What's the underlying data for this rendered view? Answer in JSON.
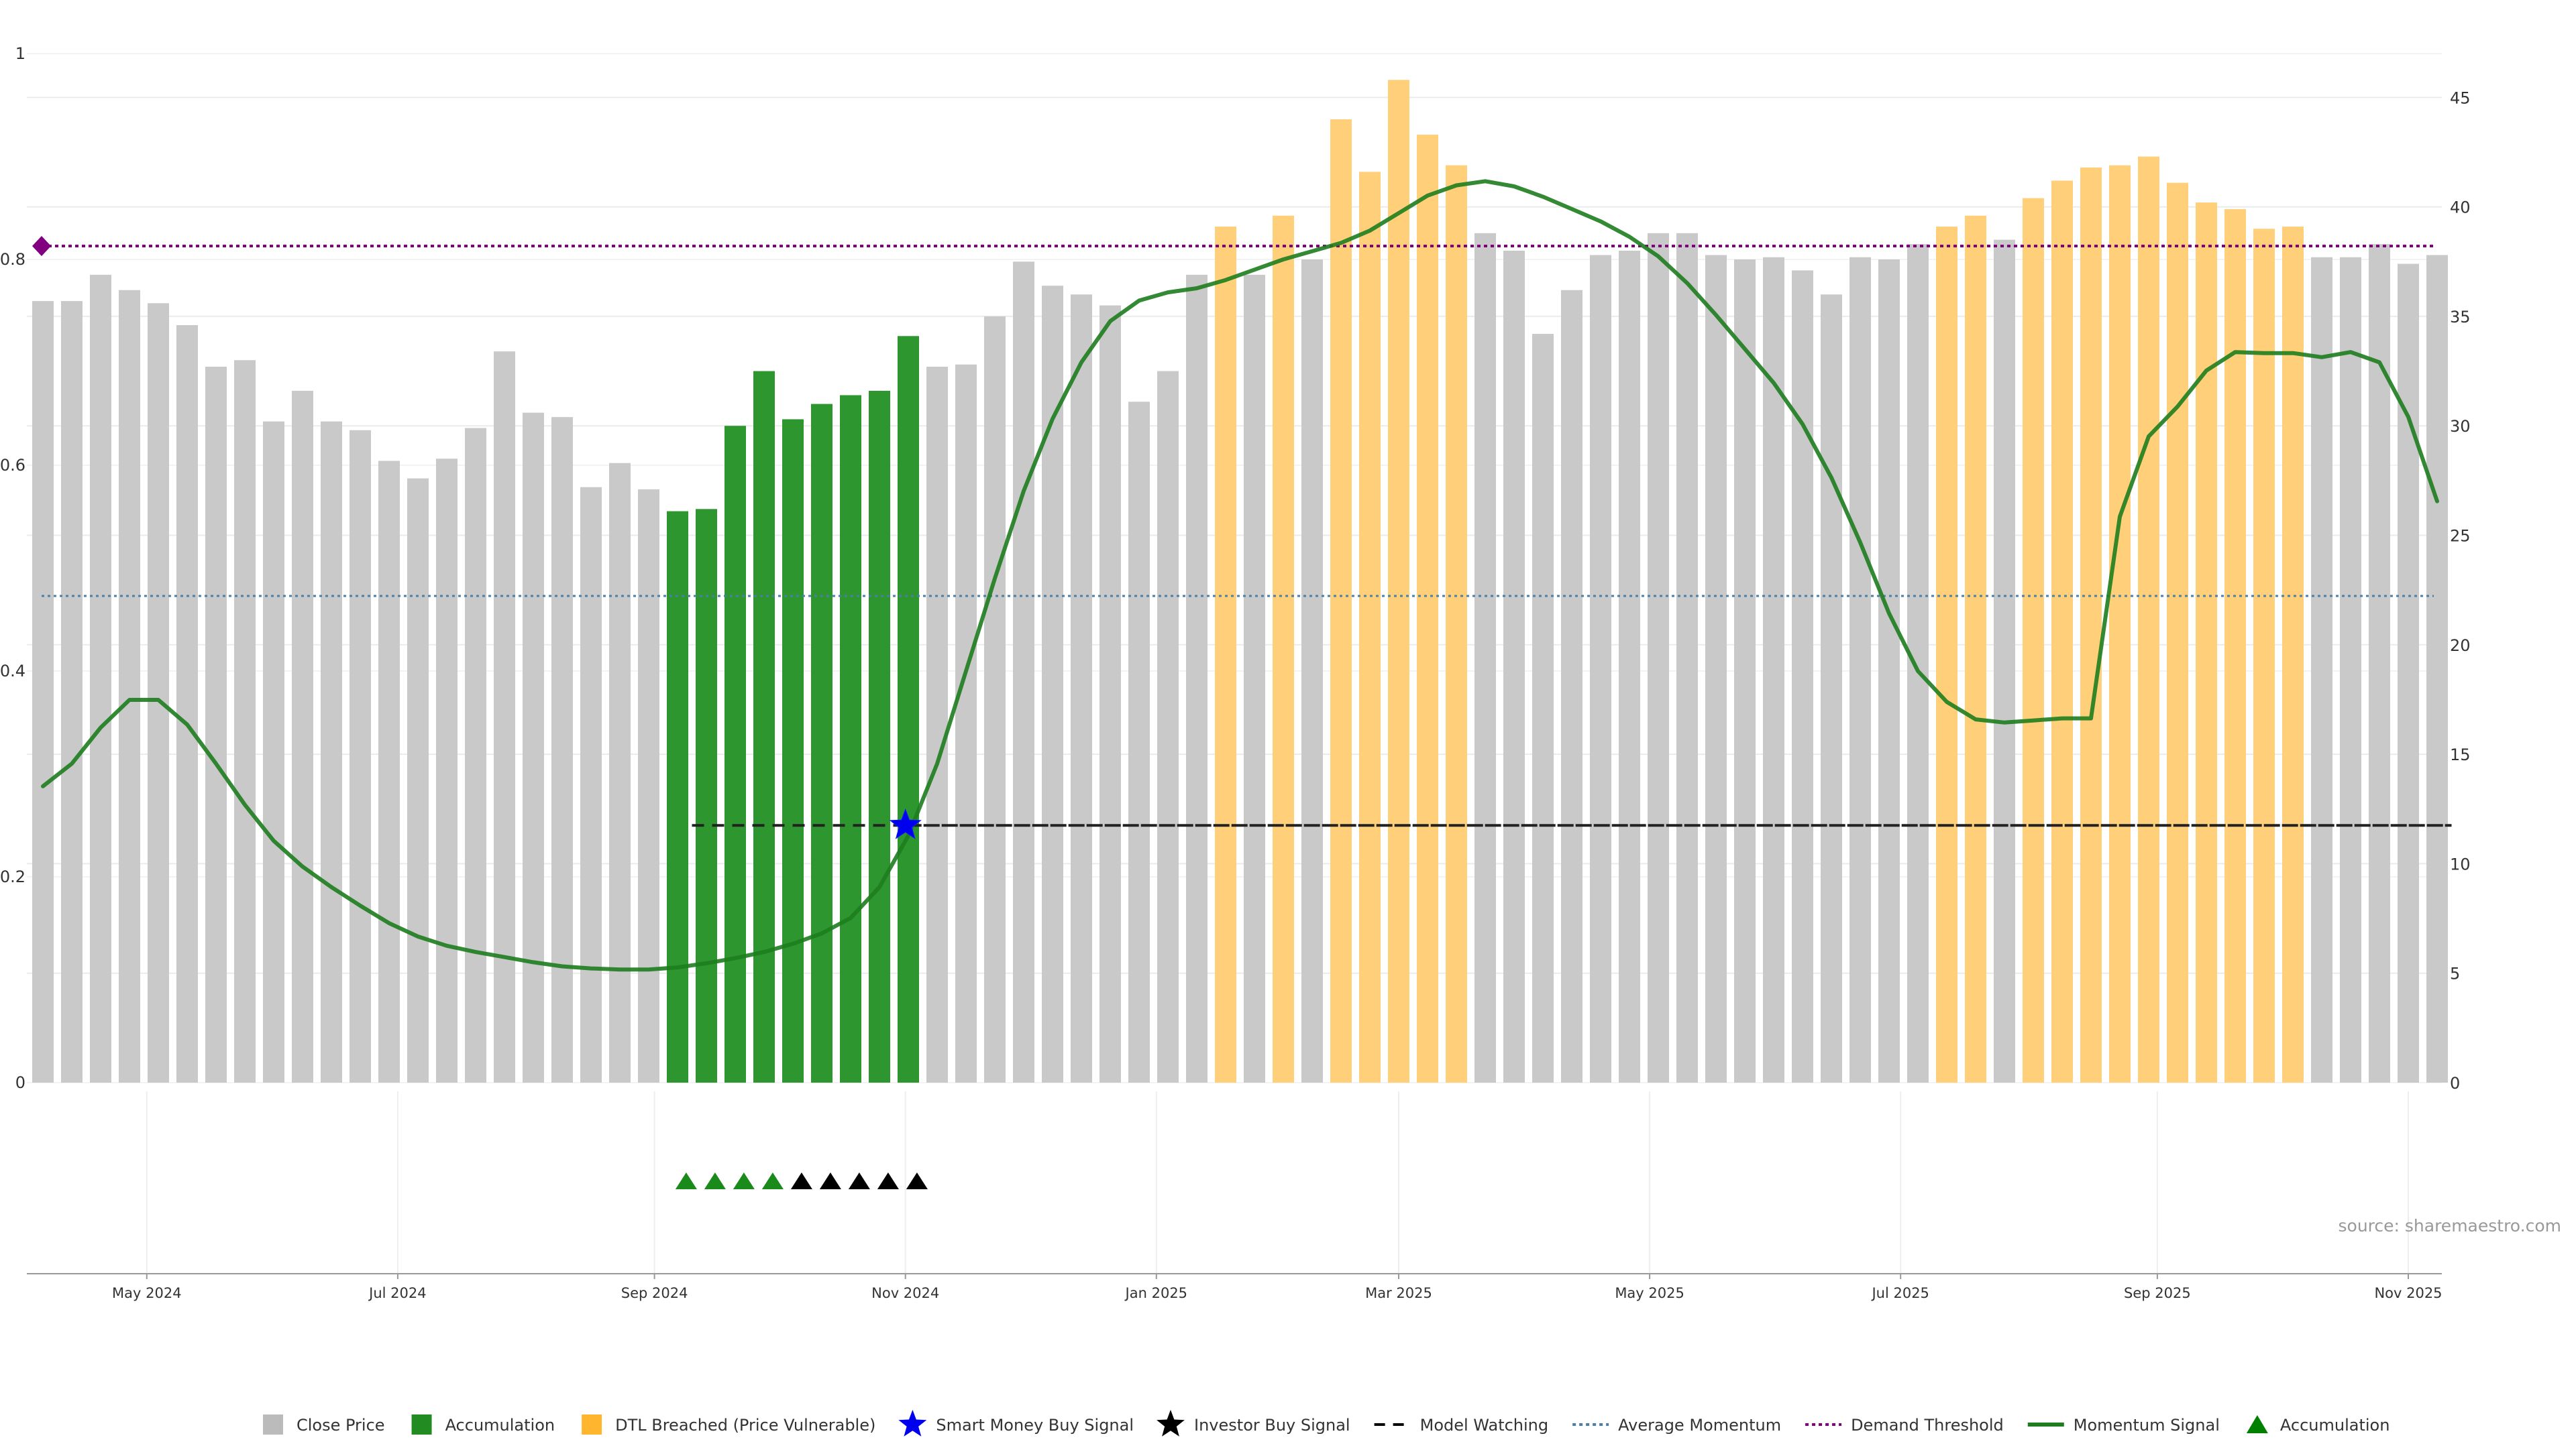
{
  "chart_data": {
    "type": "bar+line",
    "title": "",
    "source": "source: sharemaestro.com",
    "left_axis": {
      "ylim": [
        0,
        1
      ],
      "ticks": [
        0,
        0.2,
        0.4,
        0.6,
        0.8,
        1
      ],
      "tick_labels": [
        "0",
        "0.2",
        "0.4",
        "0.6",
        "0.8",
        "1"
      ]
    },
    "right_axis": {
      "ylim": [
        0,
        47
      ],
      "ticks": [
        0,
        5,
        10,
        15,
        20,
        25,
        30,
        35,
        40,
        45
      ],
      "tick_labels": [
        "0",
        "5",
        "10",
        "15",
        "20",
        "25",
        "30",
        "35",
        "40",
        "45"
      ]
    },
    "x_ticks": [
      {
        "label": "May 2024",
        "index": 3.6
      },
      {
        "label": "Jul 2024",
        "index": 12.3
      },
      {
        "label": "Sep 2024",
        "index": 21.2
      },
      {
        "label": "Nov 2024",
        "index": 29.9
      },
      {
        "label": "Jan 2025",
        "index": 38.6
      },
      {
        "label": "Mar 2025",
        "index": 47.0
      },
      {
        "label": "May 2025",
        "index": 55.7
      },
      {
        "label": "Jul 2025",
        "index": 64.4
      },
      {
        "label": "Sep 2025",
        "index": 73.3
      },
      {
        "label": "Nov 2025",
        "index": 82.0
      }
    ],
    "close_price": [
      35.7,
      35.7,
      36.9,
      36.2,
      35.6,
      34.6,
      32.7,
      33.0,
      30.2,
      31.6,
      30.2,
      29.8,
      28.4,
      27.6,
      28.5,
      29.9,
      33.4,
      30.6,
      30.4,
      27.2,
      28.3,
      27.1,
      26.1,
      26.2,
      30.0,
      32.5,
      30.3,
      31.0,
      31.4,
      31.6,
      34.1,
      32.7,
      32.8,
      35.0,
      37.5,
      36.4,
      36.0,
      35.5,
      31.1,
      32.5,
      36.9,
      39.1,
      36.9,
      39.6,
      37.6,
      44.0,
      41.6,
      45.8,
      43.3,
      41.9,
      38.8,
      38.0,
      34.2,
      36.2,
      37.8,
      38.0,
      38.8,
      38.8,
      37.8,
      37.6,
      37.7,
      37.1,
      36.0,
      37.7,
      37.6,
      38.3,
      39.1,
      39.6,
      38.5,
      40.4,
      41.2,
      41.8,
      41.9,
      42.3,
      41.1,
      40.2,
      39.9,
      39.0,
      39.1,
      37.7,
      37.7,
      38.3,
      37.4,
      37.8
    ],
    "bar_category": [
      "grey",
      "grey",
      "grey",
      "grey",
      "grey",
      "grey",
      "grey",
      "grey",
      "grey",
      "grey",
      "grey",
      "grey",
      "grey",
      "grey",
      "grey",
      "grey",
      "grey",
      "grey",
      "grey",
      "grey",
      "grey",
      "grey",
      "green",
      "green",
      "green",
      "green",
      "green",
      "green",
      "green",
      "green",
      "green",
      "grey",
      "grey",
      "grey",
      "grey",
      "grey",
      "grey",
      "grey",
      "grey",
      "grey",
      "grey",
      "orange",
      "grey",
      "orange",
      "grey",
      "orange",
      "orange",
      "orange",
      "orange",
      "orange",
      "grey",
      "grey",
      "grey",
      "grey",
      "grey",
      "grey",
      "grey",
      "grey",
      "grey",
      "grey",
      "grey",
      "grey",
      "grey",
      "grey",
      "grey",
      "grey",
      "orange",
      "orange",
      "grey",
      "orange",
      "orange",
      "orange",
      "orange",
      "orange",
      "orange",
      "orange",
      "orange",
      "orange",
      "orange",
      "grey",
      "grey",
      "grey",
      "grey",
      "grey"
    ],
    "momentum_signal": [
      0.288,
      0.31,
      0.345,
      0.372,
      0.372,
      0.348,
      0.31,
      0.27,
      0.235,
      0.21,
      0.19,
      0.172,
      0.155,
      0.142,
      0.133,
      0.127,
      0.122,
      0.117,
      0.113,
      0.111,
      0.11,
      0.11,
      0.112,
      0.116,
      0.121,
      0.127,
      0.135,
      0.145,
      0.16,
      0.19,
      0.24,
      0.31,
      0.4,
      0.49,
      0.575,
      0.645,
      0.7,
      0.74,
      0.76,
      0.768,
      0.772,
      0.78,
      0.79,
      0.8,
      0.808,
      0.816,
      0.828,
      0.845,
      0.862,
      0.872,
      0.876,
      0.871,
      0.861,
      0.849,
      0.837,
      0.822,
      0.803,
      0.777,
      0.746,
      0.713,
      0.68,
      0.64,
      0.588,
      0.525,
      0.456,
      0.4,
      0.37,
      0.353,
      0.35,
      0.352,
      0.354,
      0.354,
      0.55,
      0.628,
      0.657,
      0.692,
      0.71,
      0.709,
      0.709,
      0.705,
      0.71,
      0.7,
      0.647,
      0.565
    ],
    "average_momentum": 0.473,
    "demand_threshold": 0.813,
    "demand_threshold_marker": "diamond",
    "model_watching": {
      "value": 0.25,
      "dashed_from": 22.5,
      "dashed_to": 29.9,
      "solid_from": 29.9,
      "solid_to": 83.5
    },
    "smart_money_buy_signal": {
      "index": 29.9,
      "value": 0.25
    },
    "accumulation_triangles": [
      {
        "index": 22.3,
        "color": "green"
      },
      {
        "index": 23.3,
        "color": "green"
      },
      {
        "index": 24.3,
        "color": "green"
      },
      {
        "index": 25.3,
        "color": "green"
      },
      {
        "index": 26.3,
        "color": "black"
      },
      {
        "index": 27.3,
        "color": "black"
      },
      {
        "index": 28.3,
        "color": "black"
      },
      {
        "index": 29.3,
        "color": "black"
      },
      {
        "index": 30.3,
        "color": "black"
      }
    ],
    "legend": [
      {
        "label": "Close Price",
        "symbol": "square",
        "color": "#bbbbbb"
      },
      {
        "label": "Accumulation",
        "symbol": "square",
        "color": "#228b22"
      },
      {
        "label": "DTL Breached (Price Vulnerable)",
        "symbol": "square",
        "color": "#ffb52e"
      },
      {
        "label": "Smart Money Buy Signal",
        "symbol": "star",
        "color": "#0000ee"
      },
      {
        "label": "Investor Buy Signal",
        "symbol": "star",
        "color": "#000000"
      },
      {
        "label": "Model Watching",
        "symbol": "dash",
        "color": "#000000"
      },
      {
        "label": "Average Momentum",
        "symbol": "dot",
        "color": "#4a7fa8"
      },
      {
        "label": "Demand Threshold",
        "symbol": "dot",
        "color": "#800080"
      },
      {
        "label": "Momentum Signal",
        "symbol": "line",
        "color": "#1e7d1e"
      },
      {
        "label": "Accumulation",
        "symbol": "triangle",
        "color": "#008000"
      }
    ],
    "colors": {
      "grey": "#c9c9c9",
      "green": "#2e962e",
      "orange": "#ffcf7a",
      "momentum": "#1e7d1e",
      "average": "#4a7fa8",
      "demand": "#800080",
      "model": "#222222",
      "smart_money": "#0000ee"
    }
  }
}
